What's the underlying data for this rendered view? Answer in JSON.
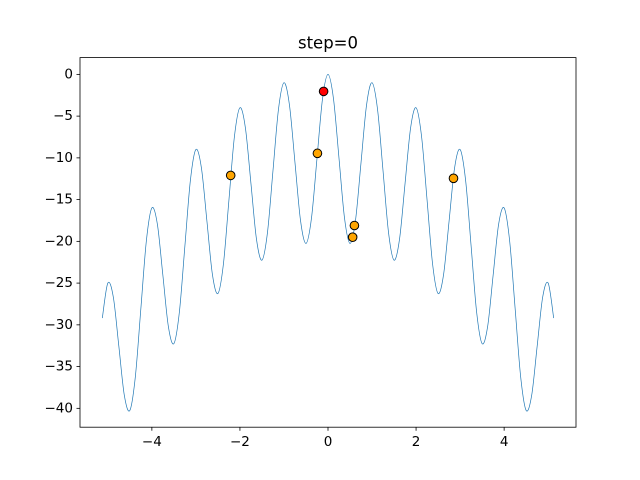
{
  "chart_data": {
    "type": "line",
    "title": "step=0",
    "xlim": [
      -5.632,
      5.632
    ],
    "ylim": [
      -42.26,
      2.01
    ],
    "xticks": [
      {
        "value": -4,
        "label": "−4"
      },
      {
        "value": -2,
        "label": "−2"
      },
      0,
      2,
      4
    ],
    "yticks": [
      0,
      {
        "value": -5,
        "label": "−5"
      },
      {
        "value": -10,
        "label": "−10"
      },
      {
        "value": -15,
        "label": "−15"
      },
      {
        "value": -20,
        "label": "−20"
      },
      {
        "value": -25,
        "label": "−25"
      },
      {
        "value": -30,
        "label": "−30"
      },
      {
        "value": -35,
        "label": "−35"
      },
      {
        "value": -40,
        "label": "−40"
      }
    ],
    "series": [
      {
        "type": "line",
        "color": "#1f77b4",
        "x": [
          -5.125,
          -5,
          -4.875,
          -4.75,
          -4.625,
          -4.5,
          -4.375,
          -4.25,
          -4.125,
          -4,
          -3.875,
          -3.75,
          -3.625,
          -3.5,
          -3.375,
          -3.25,
          -3.125,
          -3,
          -2.875,
          -2.75,
          -2.625,
          -2.5,
          -2.375,
          -2.25,
          -2.125,
          -2,
          -1.875,
          -1.75,
          -1.625,
          -1.5,
          -1.375,
          -1.25,
          -1.125,
          -1,
          -0.875,
          -0.75,
          -0.625,
          -0.5,
          -0.375,
          -0.25,
          -0.125,
          0,
          0.125,
          0.25,
          0.375,
          0.5,
          0.625,
          0.75,
          0.875,
          1,
          1.125,
          1.25,
          1.375,
          1.5,
          1.625,
          1.75,
          1.875,
          2,
          2.125,
          2.25,
          2.375,
          2.5,
          2.625,
          2.75,
          2.875,
          3,
          3.125,
          3.25,
          3.375,
          3.5,
          3.625,
          3.75,
          3.875,
          4,
          4.125,
          4.25,
          4.375,
          4.5,
          4.625,
          4.75,
          4.875,
          5,
          5.125
        ],
        "values": [
          -29.19,
          -25,
          -26.69,
          -32.56,
          -38.46,
          -40.25,
          -36.21,
          -28.06,
          -19.94,
          -16,
          -17.94,
          -24.06,
          -30.21,
          -32.25,
          -28.46,
          -20.56,
          -12.69,
          -9,
          -11.19,
          -17.56,
          -23.96,
          -26.25,
          -22.71,
          -15.06,
          -7.44,
          -4,
          -6.44,
          -13.06,
          -19.71,
          -22.25,
          -18.96,
          -11.56,
          -4.19,
          -1,
          -3.69,
          -10.56,
          -17.46,
          -20.25,
          -17.21,
          -10.06,
          -2.94,
          0,
          -2.94,
          -10.06,
          -17.21,
          -20.25,
          -17.46,
          -10.56,
          -3.69,
          -1,
          -4.19,
          -11.56,
          -18.96,
          -22.25,
          -19.71,
          -13.06,
          -6.44,
          -4,
          -7.44,
          -15.06,
          -22.71,
          -26.25,
          -23.96,
          -17.56,
          -11.19,
          -9,
          -12.69,
          -20.56,
          -28.46,
          -32.25,
          -30.21,
          -24.06,
          -17.94,
          -16,
          -19.94,
          -28.06,
          -36.21,
          -40.25,
          -38.46,
          -32.56,
          -26.69,
          -25,
          -29.19
        ]
      },
      {
        "type": "scatter",
        "color": "#ffa500",
        "x": [
          -2.21,
          -0.24,
          0.6,
          0.56,
          2.85
        ],
        "values": [
          -12.1,
          -9.46,
          -18.1,
          -19.5,
          -12.45
        ]
      },
      {
        "type": "scatter",
        "color": "#ff0000",
        "x": [
          -0.1
        ],
        "values": [
          -2.04
        ]
      }
    ]
  }
}
